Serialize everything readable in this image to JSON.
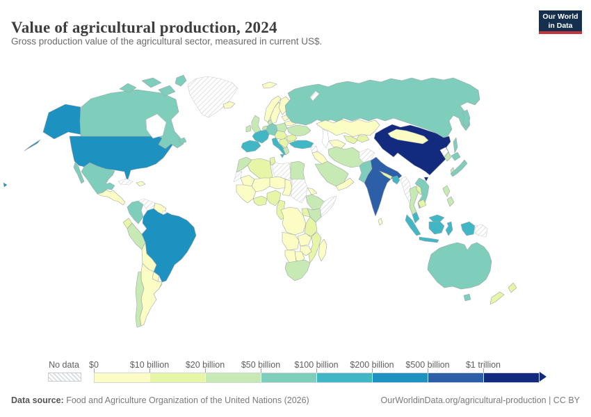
{
  "header": {
    "title": "Value of agricultural production, 2024",
    "subtitle": "Gross production value of the agricultural sector, measured in current US$."
  },
  "logo": {
    "line1": "Our World",
    "line2": "in Data"
  },
  "legend": {
    "no_data_label": "No data",
    "tick_labels": [
      "$0",
      "$10 billion",
      "$20 billion",
      "$50 billion",
      "$100 billion",
      "$200 billion",
      "$500 billion",
      "$1 trillion"
    ],
    "bin_colors": [
      "#FCFDC5",
      "#E7F5A7",
      "#C7E9B4",
      "#7FCDBB",
      "#41B6C4",
      "#1D91C0",
      "#2C5FA8",
      "#132B7E"
    ],
    "no_data_border": "#c9ccce"
  },
  "footer": {
    "source_label": "Data source:",
    "source_text": " Food and Agriculture Organization of the United Nations (2026)",
    "link_text": "OurWorldinData.org/agricultural-production | CC BY"
  },
  "chart_data": {
    "type": "choropleth-map",
    "title": "Value of agricultural production, 2024",
    "unit": "current US$",
    "legend_position": "bottom",
    "bin_ranges": [
      "$0–$10 billion",
      "$10–$20 billion",
      "$20–$50 billion",
      "$50–$100 billion",
      "$100–$200 billion",
      "$200–$500 billion",
      "$500 billion–$1 trillion",
      "$1 trillion+"
    ],
    "regions": [
      {
        "id": "usa",
        "name": "United States",
        "bin": 5
      },
      {
        "id": "canada",
        "name": "Canada",
        "bin": 3
      },
      {
        "id": "greenland",
        "name": "Greenland",
        "bin": "no_data"
      },
      {
        "id": "mexico",
        "name": "Mexico",
        "bin": 3
      },
      {
        "id": "central-america",
        "name": "Central America",
        "bin": 0
      },
      {
        "id": "cuba",
        "name": "Cuba",
        "bin": "no_data"
      },
      {
        "id": "hispaniola",
        "name": "Haiti & Dominican Republic",
        "bin": 0
      },
      {
        "id": "colombia",
        "name": "Colombia",
        "bin": 3
      },
      {
        "id": "venezuela",
        "name": "Venezuela",
        "bin": "no_data"
      },
      {
        "id": "guyana-suriname",
        "name": "Guyana & Suriname",
        "bin": 0
      },
      {
        "id": "french-guiana",
        "name": "French Guiana",
        "bin": "no_data"
      },
      {
        "id": "ecuador",
        "name": "Ecuador",
        "bin": 1
      },
      {
        "id": "peru",
        "name": "Peru",
        "bin": 2
      },
      {
        "id": "brazil",
        "name": "Brazil",
        "bin": 5
      },
      {
        "id": "bolivia",
        "name": "Bolivia",
        "bin": 0
      },
      {
        "id": "paraguay",
        "name": "Paraguay",
        "bin": 0
      },
      {
        "id": "uruguay",
        "name": "Uruguay",
        "bin": 1
      },
      {
        "id": "argentina",
        "name": "Argentina",
        "bin": 0
      },
      {
        "id": "chile",
        "name": "Chile",
        "bin": 2
      },
      {
        "id": "iceland",
        "name": "Iceland",
        "bin": 0
      },
      {
        "id": "uk",
        "name": "United Kingdom",
        "bin": 2
      },
      {
        "id": "ireland",
        "name": "Ireland",
        "bin": 2
      },
      {
        "id": "norway",
        "name": "Norway",
        "bin": 0
      },
      {
        "id": "sweden",
        "name": "Sweden",
        "bin": 0
      },
      {
        "id": "finland",
        "name": "Finland",
        "bin": 0
      },
      {
        "id": "denmark",
        "name": "Denmark",
        "bin": 2
      },
      {
        "id": "baltics",
        "name": "Baltic states",
        "bin": 0
      },
      {
        "id": "belarus",
        "name": "Belarus",
        "bin": 0
      },
      {
        "id": "poland",
        "name": "Poland",
        "bin": 2
      },
      {
        "id": "germany",
        "name": "Germany",
        "bin": 3
      },
      {
        "id": "benelux",
        "name": "Benelux",
        "bin": 2
      },
      {
        "id": "france",
        "name": "France",
        "bin": 4
      },
      {
        "id": "iberia",
        "name": "Spain & Portugal",
        "bin": 4
      },
      {
        "id": "italy",
        "name": "Italy",
        "bin": 4
      },
      {
        "id": "central-europe",
        "name": "Czechia, Austria & Hungary",
        "bin": 1
      },
      {
        "id": "balkans",
        "name": "Balkans",
        "bin": 1
      },
      {
        "id": "greece",
        "name": "Greece",
        "bin": 2
      },
      {
        "id": "romania",
        "name": "Romania",
        "bin": 1
      },
      {
        "id": "bulgaria",
        "name": "Bulgaria",
        "bin": 0
      },
      {
        "id": "ukraine",
        "name": "Ukraine",
        "bin": 2
      },
      {
        "id": "russia",
        "name": "Russia",
        "bin": 3
      },
      {
        "id": "novaya-zemlya",
        "name": "Novaya Zemlya",
        "bin": "no_data"
      },
      {
        "id": "kazakhstan",
        "name": "Kazakhstan",
        "bin": 0
      },
      {
        "id": "uzbekistan",
        "name": "Uzbekistan",
        "bin": 1
      },
      {
        "id": "turkmenistan",
        "name": "Turkmenistan",
        "bin": 0
      },
      {
        "id": "kyrgyzstan",
        "name": "Kyrgyzstan & Tajikistan",
        "bin": 1
      },
      {
        "id": "turkey",
        "name": "Turkey",
        "bin": 4
      },
      {
        "id": "syria",
        "name": "Syria",
        "bin": "no_data"
      },
      {
        "id": "iraq",
        "name": "Iraq",
        "bin": 0
      },
      {
        "id": "saudi-arabia",
        "name": "Saudi Arabia",
        "bin": 2
      },
      {
        "id": "yemen-oman",
        "name": "Yemen & Oman",
        "bin": 0
      },
      {
        "id": "iran",
        "name": "Iran",
        "bin": 2
      },
      {
        "id": "afghanistan",
        "name": "Afghanistan",
        "bin": "no_data"
      },
      {
        "id": "pakistan",
        "name": "Pakistan",
        "bin": 3
      },
      {
        "id": "india",
        "name": "India",
        "bin": 6
      },
      {
        "id": "nepal",
        "name": "Nepal",
        "bin": 1
      },
      {
        "id": "bangladesh",
        "name": "Bangladesh",
        "bin": 4
      },
      {
        "id": "sri-lanka",
        "name": "Sri Lanka",
        "bin": 0
      },
      {
        "id": "china",
        "name": "China",
        "bin": 7
      },
      {
        "id": "mongolia",
        "name": "Mongolia",
        "bin": 0
      },
      {
        "id": "taiwan",
        "name": "Taiwan",
        "bin": 2
      },
      {
        "id": "north-korea",
        "name": "North Korea",
        "bin": "no_data"
      },
      {
        "id": "south-korea",
        "name": "South Korea",
        "bin": 2
      },
      {
        "id": "japan",
        "name": "Japan",
        "bin": 3
      },
      {
        "id": "myanmar",
        "name": "Myanmar",
        "bin": "no_data"
      },
      {
        "id": "thailand",
        "name": "Thailand",
        "bin": 2
      },
      {
        "id": "laos",
        "name": "Laos",
        "bin": 1
      },
      {
        "id": "vietnam",
        "name": "Vietnam",
        "bin": 3
      },
      {
        "id": "cambodia",
        "name": "Cambodia",
        "bin": 1
      },
      {
        "id": "malaysia",
        "name": "Malaysia",
        "bin": 4
      },
      {
        "id": "indonesia",
        "name": "Indonesia",
        "bin": 4
      },
      {
        "id": "philippines",
        "name": "Philippines",
        "bin": 2
      },
      {
        "id": "papua-new-guinea",
        "name": "Papua New Guinea",
        "bin": "no_data"
      },
      {
        "id": "australia",
        "name": "Australia",
        "bin": 3
      },
      {
        "id": "new-zealand",
        "name": "New Zealand",
        "bin": 1
      },
      {
        "id": "morocco",
        "name": "Morocco",
        "bin": 2
      },
      {
        "id": "algeria",
        "name": "Algeria",
        "bin": 1
      },
      {
        "id": "tunisia",
        "name": "Tunisia",
        "bin": 1
      },
      {
        "id": "libya",
        "name": "Libya",
        "bin": "no_data"
      },
      {
        "id": "egypt",
        "name": "Egypt",
        "bin": 2
      },
      {
        "id": "western-sahara",
        "name": "Western Sahara",
        "bin": "no_data"
      },
      {
        "id": "mauritania",
        "name": "Mauritania",
        "bin": 0
      },
      {
        "id": "mali",
        "name": "Mali",
        "bin": 0
      },
      {
        "id": "niger",
        "name": "Niger",
        "bin": 0
      },
      {
        "id": "chad",
        "name": "Chad",
        "bin": 0
      },
      {
        "id": "west-africa",
        "name": "Senegal & Guinea region",
        "bin": 0
      },
      {
        "id": "ghana-cote",
        "name": "Ghana & Côte d'Ivoire",
        "bin": 1
      },
      {
        "id": "nigeria",
        "name": "Nigeria",
        "bin": 1
      },
      {
        "id": "cameroon",
        "name": "Cameroon & Gabon",
        "bin": 1
      },
      {
        "id": "sudan",
        "name": "Sudan & South Sudan",
        "bin": "no_data"
      },
      {
        "id": "horn-coast",
        "name": "Eritrea & Djibouti",
        "bin": 0
      },
      {
        "id": "ethiopia",
        "name": "Ethiopia",
        "bin": 2
      },
      {
        "id": "somalia",
        "name": "Somalia",
        "bin": "no_data"
      },
      {
        "id": "kenya",
        "name": "Kenya",
        "bin": 2
      },
      {
        "id": "uganda",
        "name": "Uganda",
        "bin": 1
      },
      {
        "id": "tanzania",
        "name": "Tanzania",
        "bin": 1
      },
      {
        "id": "drc",
        "name": "Democratic Republic of Congo",
        "bin": 0
      },
      {
        "id": "angola",
        "name": "Angola",
        "bin": 0
      },
      {
        "id": "zambia",
        "name": "Zambia",
        "bin": 0
      },
      {
        "id": "zimbabwe",
        "name": "Zimbabwe",
        "bin": 0
      },
      {
        "id": "mozambique",
        "name": "Mozambique",
        "bin": 1
      },
      {
        "id": "namibia",
        "name": "Namibia",
        "bin": 0
      },
      {
        "id": "botswana",
        "name": "Botswana",
        "bin": 0
      },
      {
        "id": "south-africa",
        "name": "South Africa",
        "bin": 2
      },
      {
        "id": "madagascar",
        "name": "Madagascar",
        "bin": 0
      }
    ]
  }
}
